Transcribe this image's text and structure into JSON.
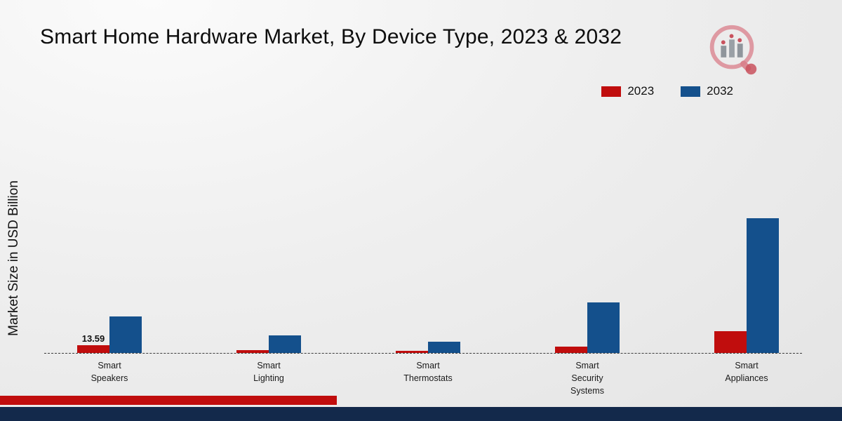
{
  "title": "Smart Home Hardware Market, By Device Type, 2023 & 2032",
  "ylabel": "Market Size in USD Billion",
  "colors": {
    "series_2023": "#c00d0d",
    "series_2032": "#14508c",
    "footer_red": "#c00d0d",
    "footer_navy": "#13294b",
    "baseline": "#3a3a3a"
  },
  "legend": {
    "items": [
      {
        "label": "2023",
        "color": "#c00d0d"
      },
      {
        "label": "2032",
        "color": "#14508c"
      }
    ]
  },
  "chart_data": {
    "type": "bar",
    "title": "Smart Home Hardware Market, By Device Type, 2023 & 2032",
    "xlabel": "",
    "ylabel": "Market Size in USD Billion",
    "categories": [
      "Smart Speakers",
      "Smart Lighting",
      "Smart Thermostats",
      "Smart Security Systems",
      "Smart Appliances"
    ],
    "series": [
      {
        "name": "2023",
        "color": "#c00d0d",
        "values": [
          13.59,
          5.5,
          3.2,
          11.5,
          38
        ]
      },
      {
        "name": "2032",
        "color": "#14508c",
        "values": [
          64,
          30,
          19,
          88,
          235
        ]
      }
    ],
    "annotation": {
      "series": 0,
      "index": 0,
      "text": "13.59"
    },
    "ylim": [
      0,
      240
    ],
    "grid": false,
    "legend_position": "top-right",
    "baseline_style": "dashed"
  }
}
